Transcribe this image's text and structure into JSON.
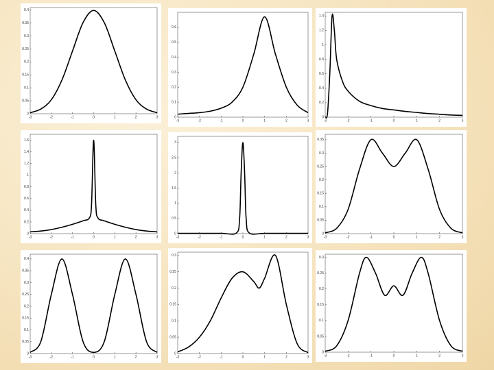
{
  "chart_data": [
    {
      "type": "line",
      "color": "#000000",
      "x": [
        -3,
        -2.5,
        -2,
        -1.5,
        -1,
        -0.5,
        0,
        0.5,
        1,
        1.5,
        2,
        2.5,
        3
      ],
      "values": [
        0.004,
        0.018,
        0.054,
        0.13,
        0.242,
        0.352,
        0.399,
        0.352,
        0.242,
        0.13,
        0.054,
        0.018,
        0.004
      ],
      "xlim": [
        -3,
        3
      ],
      "ylim": [
        0,
        0.41
      ],
      "xticks": [
        -3,
        -2,
        -1,
        0,
        1,
        2,
        3
      ],
      "yticks": [
        0,
        0.05,
        0.1,
        0.15,
        0.2,
        0.25,
        0.3,
        0.35,
        0.4
      ]
    },
    {
      "type": "line",
      "color": "#000000",
      "x": [
        -3,
        -2.5,
        -2,
        -1.5,
        -1,
        -0.5,
        0,
        0.5,
        1,
        1.5,
        2,
        2.5,
        3
      ],
      "values": [
        0.02,
        0.025,
        0.03,
        0.04,
        0.06,
        0.1,
        0.2,
        0.42,
        0.67,
        0.42,
        0.2,
        0.08,
        0.03
      ],
      "xlim": [
        -3,
        3
      ],
      "ylim": [
        0,
        0.7
      ],
      "xticks": [
        -3,
        -2,
        -1,
        0,
        1,
        2,
        3
      ],
      "yticks": [
        0,
        0.1,
        0.2,
        0.3,
        0.4,
        0.5,
        0.6
      ]
    },
    {
      "type": "line",
      "color": "#000000",
      "x": [
        -3,
        -2.9,
        -2.8,
        -2.7,
        -2.6,
        -2.5,
        -2.25,
        -2,
        -1.5,
        -1,
        -0.5,
        0,
        0.5,
        1,
        1.5,
        2,
        2.5,
        3
      ],
      "values": [
        0,
        0.05,
        0.6,
        1.4,
        1.2,
        0.8,
        0.5,
        0.36,
        0.22,
        0.16,
        0.12,
        0.1,
        0.08,
        0.065,
        0.05,
        0.04,
        0.03,
        0.025
      ],
      "xlim": [
        -3,
        3
      ],
      "ylim": [
        0,
        1.45
      ],
      "xticks": [
        -3,
        -2,
        -1,
        0,
        1,
        2,
        3
      ],
      "yticks": [
        0,
        0.2,
        0.4,
        0.6,
        0.8,
        1,
        1.2,
        1.4
      ]
    },
    {
      "type": "line",
      "color": "#000000",
      "x": [
        -3,
        -2.5,
        -2,
        -1.5,
        -1,
        -0.5,
        -0.2,
        -0.1,
        0,
        0.1,
        0.2,
        0.5,
        1,
        1.5,
        2,
        2.5,
        3
      ],
      "values": [
        0.03,
        0.045,
        0.07,
        0.11,
        0.16,
        0.22,
        0.27,
        0.5,
        1.6,
        0.5,
        0.27,
        0.22,
        0.16,
        0.11,
        0.07,
        0.045,
        0.03
      ],
      "xlim": [
        -3,
        3
      ],
      "ylim": [
        0,
        1.7
      ],
      "xticks": [
        -3,
        -2,
        -1,
        0,
        1,
        2,
        3
      ],
      "yticks": [
        0,
        0.2,
        0.4,
        0.6,
        0.8,
        1,
        1.2,
        1.4,
        1.6
      ]
    },
    {
      "type": "line",
      "color": "#000000",
      "x": [
        -3,
        -2,
        -1,
        -0.3,
        -0.15,
        -0.08,
        0,
        0.08,
        0.15,
        0.3,
        1,
        2,
        3
      ],
      "values": [
        0.01,
        0.01,
        0.01,
        0.02,
        0.5,
        2,
        3,
        2,
        0.5,
        0.02,
        0.01,
        0.01,
        0.01
      ],
      "xlim": [
        -3,
        3
      ],
      "ylim": [
        0,
        3.2
      ],
      "xticks": [
        -3,
        -2,
        -1,
        0,
        1,
        2,
        3
      ],
      "yticks": [
        0,
        0.5,
        1,
        1.5,
        2,
        2.5,
        3
      ]
    },
    {
      "type": "line",
      "color": "#000000",
      "x": [
        -3,
        -2.5,
        -2,
        -1.5,
        -1,
        -0.5,
        0,
        0.5,
        1,
        1.5,
        2,
        2.5,
        3
      ],
      "values": [
        0.003,
        0.02,
        0.09,
        0.24,
        0.35,
        0.3,
        0.25,
        0.3,
        0.35,
        0.24,
        0.09,
        0.02,
        0.003
      ],
      "xlim": [
        -3,
        3
      ],
      "ylim": [
        0,
        0.37
      ],
      "xticks": [
        -3,
        -2,
        -1,
        0,
        1,
        2,
        3
      ],
      "yticks": [
        0,
        0.05,
        0.1,
        0.15,
        0.2,
        0.25,
        0.3,
        0.35
      ]
    },
    {
      "type": "line",
      "color": "#000000",
      "x": [
        -3,
        -2.5,
        -2,
        -1.5,
        -1,
        -0.5,
        0,
        0.5,
        1,
        1.5,
        2,
        2.5,
        3
      ],
      "values": [
        0.005,
        0.05,
        0.25,
        0.4,
        0.25,
        0.05,
        0.005,
        0.05,
        0.25,
        0.4,
        0.25,
        0.05,
        0.005
      ],
      "xlim": [
        -3,
        3
      ],
      "ylim": [
        0,
        0.42
      ],
      "xticks": [
        -3,
        -2,
        -1,
        0,
        1,
        2,
        3
      ],
      "yticks": [
        0,
        0.05,
        0.1,
        0.15,
        0.2,
        0.25,
        0.3,
        0.35,
        0.4
      ]
    },
    {
      "type": "line",
      "color": "#000000",
      "x": [
        -3,
        -2.5,
        -2,
        -1.5,
        -1,
        -0.5,
        0,
        0.5,
        0.75,
        1,
        1.5,
        2,
        2.5,
        3
      ],
      "values": [
        0.005,
        0.02,
        0.05,
        0.1,
        0.17,
        0.23,
        0.25,
        0.22,
        0.2,
        0.23,
        0.3,
        0.15,
        0.03,
        0.003
      ],
      "xlim": [
        -3,
        3
      ],
      "ylim": [
        0,
        0.31
      ],
      "xticks": [
        -3,
        -2,
        -1,
        0,
        1,
        2,
        3
      ],
      "yticks": [
        0,
        0.05,
        0.1,
        0.15,
        0.2,
        0.25,
        0.3
      ]
    },
    {
      "type": "line",
      "color": "#000000",
      "x": [
        -3,
        -2.5,
        -2,
        -1.5,
        -1.2,
        -0.8,
        -0.4,
        0,
        0.4,
        0.8,
        1.2,
        1.5,
        2,
        2.5,
        3
      ],
      "values": [
        0.003,
        0.02,
        0.1,
        0.25,
        0.3,
        0.25,
        0.18,
        0.21,
        0.18,
        0.25,
        0.3,
        0.25,
        0.1,
        0.02,
        0.003
      ],
      "xlim": [
        -3,
        3
      ],
      "ylim": [
        0,
        0.31
      ],
      "xticks": [
        -3,
        -2,
        -1,
        0,
        1,
        2,
        3
      ],
      "yticks": [
        0,
        0.05,
        0.1,
        0.15,
        0.2,
        0.25,
        0.3
      ]
    }
  ]
}
